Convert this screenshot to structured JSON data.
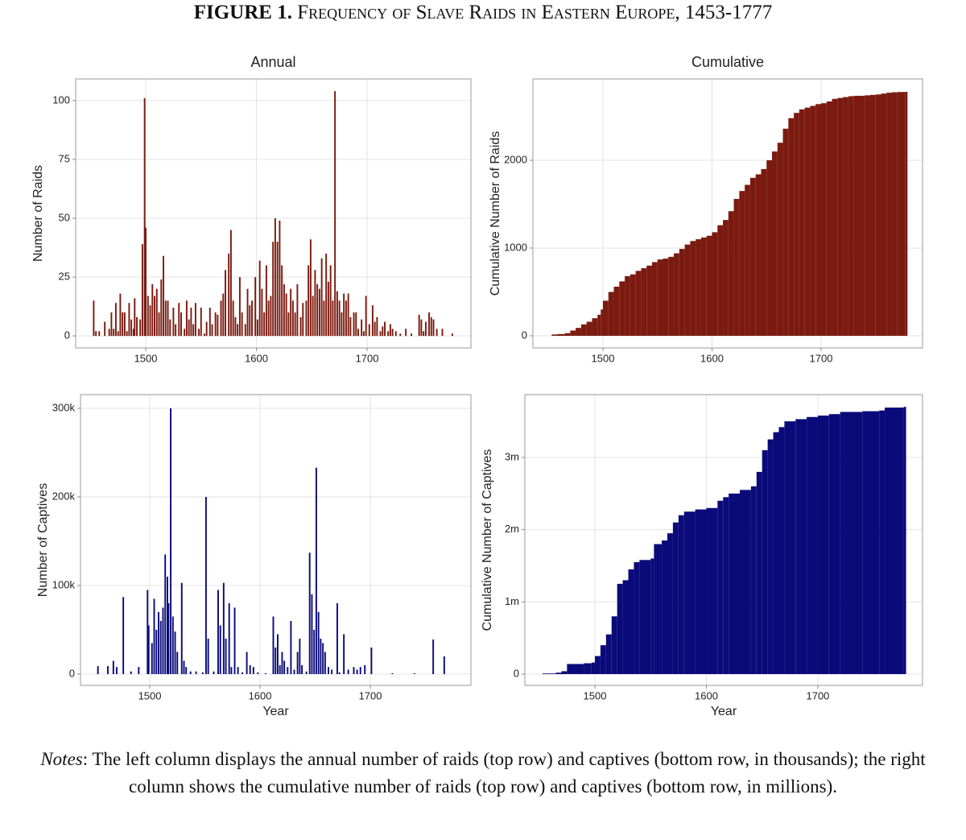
{
  "figure_label": "FIGURE 1.",
  "title": "Frequency of Slave Raids in Eastern Europe, 1453-1777",
  "notes_label": "Notes",
  "notes_text": ": The left column displays the annual number of raids (top row) and captives (bottom row, in thousands); the right column shows the cumulative number of raids (top row) and captives (bottom row, in millions).",
  "chart_data": [
    {
      "type": "bar",
      "title": "Annual",
      "ylabel": "Number of Raids",
      "color": "#7b1a10",
      "grid": true,
      "xlim": [
        1436.7,
        1793.8
      ],
      "xticks": [
        1500,
        1600,
        1700
      ],
      "ylim": [
        -5.1,
        109.2
      ],
      "yticks": [
        0,
        25,
        50,
        75,
        100
      ],
      "x": [
        1453,
        1455,
        1458,
        1463,
        1467,
        1469,
        1471,
        1473,
        1475,
        1477,
        1479,
        1481,
        1483,
        1485,
        1487,
        1489,
        1490,
        1492,
        1495,
        1497,
        1499,
        1500,
        1502,
        1504,
        1506,
        1508,
        1510,
        1512,
        1514,
        1516,
        1518,
        1520,
        1522,
        1525,
        1527,
        1530,
        1532,
        1535,
        1537,
        1539,
        1541,
        1543,
        1545,
        1548,
        1550,
        1553,
        1555,
        1558,
        1560,
        1563,
        1565,
        1568,
        1570,
        1572,
        1575,
        1577,
        1579,
        1581,
        1583,
        1585,
        1587,
        1590,
        1592,
        1594,
        1596,
        1599,
        1601,
        1603,
        1605,
        1607,
        1609,
        1611,
        1613,
        1615,
        1617,
        1619,
        1621,
        1623,
        1625,
        1627,
        1629,
        1631,
        1633,
        1635,
        1637,
        1640,
        1642,
        1645,
        1647,
        1649,
        1651,
        1653,
        1655,
        1657,
        1659,
        1661,
        1663,
        1665,
        1667,
        1669,
        1671,
        1673,
        1675,
        1677,
        1679,
        1681,
        1683,
        1685,
        1688,
        1690,
        1692,
        1695,
        1697,
        1699,
        1702,
        1705,
        1707,
        1709,
        1712,
        1714,
        1716,
        1719,
        1721,
        1723,
        1726,
        1730,
        1735,
        1740,
        1747,
        1749,
        1751,
        1753,
        1756,
        1758,
        1760,
        1763,
        1768,
        1777
      ],
      "values": [
        15,
        2,
        2,
        6,
        3,
        10,
        3,
        14,
        2,
        18,
        10,
        10,
        2,
        14,
        7,
        3,
        16,
        8,
        7,
        39,
        101,
        46,
        17,
        13,
        22,
        17,
        20,
        10,
        24,
        34,
        15,
        15,
        7,
        12,
        5,
        14,
        10,
        3,
        15,
        7,
        12,
        5,
        14,
        3,
        12,
        1,
        6,
        12,
        5,
        10,
        9,
        15,
        18,
        28,
        35,
        45,
        15,
        8,
        5,
        25,
        10,
        5,
        20,
        13,
        15,
        25,
        7,
        32,
        20,
        10,
        30,
        15,
        17,
        40,
        50,
        40,
        49,
        30,
        22,
        18,
        10,
        20,
        15,
        10,
        22,
        8,
        14,
        15,
        30,
        41,
        17,
        28,
        22,
        20,
        33,
        15,
        35,
        23,
        30,
        15,
        104,
        19,
        15,
        10,
        18,
        15,
        18,
        8,
        10,
        10,
        3,
        7,
        2,
        17,
        5,
        13,
        6,
        8,
        2,
        4,
        6,
        2,
        5,
        3,
        2,
        1,
        3,
        1,
        9,
        7,
        2,
        6,
        10,
        8,
        7,
        3,
        3,
        1
      ]
    },
    {
      "type": "step",
      "title": "Cumulative",
      "ylabel": "Cumulative Number of Raids",
      "color": "#7b1a10",
      "grid": true,
      "xlim": [
        1435.8,
        1793.0
      ],
      "xticks": [
        1500,
        1600,
        1700
      ],
      "ylim": [
        -138,
        2927
      ],
      "yticks": [
        0,
        1000,
        2000
      ],
      "x": [
        1453,
        1458,
        1465,
        1470,
        1475,
        1480,
        1485,
        1490,
        1495,
        1498,
        1500,
        1505,
        1510,
        1515,
        1520,
        1525,
        1530,
        1535,
        1540,
        1545,
        1550,
        1555,
        1560,
        1565,
        1570,
        1575,
        1580,
        1585,
        1590,
        1595,
        1600,
        1605,
        1610,
        1615,
        1620,
        1625,
        1630,
        1635,
        1640,
        1645,
        1650,
        1655,
        1660,
        1665,
        1670,
        1675,
        1680,
        1685,
        1690,
        1695,
        1700,
        1705,
        1710,
        1715,
        1720,
        1725,
        1730,
        1740,
        1745,
        1750,
        1755,
        1760,
        1765,
        1770,
        1777
      ],
      "values": [
        15,
        20,
        30,
        60,
        90,
        130,
        160,
        200,
        240,
        300,
        400,
        500,
        560,
        620,
        680,
        700,
        740,
        770,
        800,
        840,
        870,
        880,
        900,
        940,
        990,
        1040,
        1080,
        1100,
        1120,
        1140,
        1180,
        1260,
        1320,
        1420,
        1560,
        1650,
        1720,
        1800,
        1840,
        1900,
        2000,
        2100,
        2200,
        2360,
        2480,
        2540,
        2580,
        2600,
        2620,
        2640,
        2650,
        2670,
        2700,
        2710,
        2720,
        2730,
        2735,
        2740,
        2745,
        2750,
        2760,
        2770,
        2775,
        2778,
        2780
      ]
    },
    {
      "type": "bar",
      "ylabel": "Number of Captives",
      "xlabel": "Year",
      "color": "#0a0a7a",
      "grid": true,
      "xlim": [
        1437.2,
        1791.2
      ],
      "xticks": [
        1500,
        1600,
        1700
      ],
      "ylim": [
        -12727,
        315455
      ],
      "yticks": [
        0,
        {
          "value": 100000,
          "label": "100k"
        },
        {
          "value": 200000,
          "label": "200k"
        },
        {
          "value": 300000,
          "label": "300k"
        }
      ],
      "x": [
        1453,
        1462,
        1467,
        1470,
        1476,
        1483,
        1490,
        1498,
        1499,
        1502,
        1504,
        1506,
        1508,
        1510,
        1512,
        1514,
        1516,
        1517,
        1519,
        1521,
        1523,
        1525,
        1529,
        1531,
        1533,
        1537,
        1542,
        1548,
        1551,
        1553,
        1558,
        1562,
        1564,
        1567,
        1569,
        1572,
        1574,
        1577,
        1580,
        1584,
        1588,
        1591,
        1594,
        1598,
        1605,
        1612,
        1614,
        1616,
        1618,
        1620,
        1622,
        1625,
        1628,
        1631,
        1634,
        1636,
        1638,
        1642,
        1645,
        1647,
        1649,
        1651,
        1653,
        1655,
        1657,
        1659,
        1662,
        1665,
        1670,
        1672,
        1676,
        1680,
        1685,
        1688,
        1691,
        1695,
        1701,
        1720,
        1740,
        1757,
        1767
      ],
      "values": [
        9000,
        9000,
        15000,
        8000,
        87000,
        3000,
        8000,
        95000,
        55000,
        35000,
        85000,
        50000,
        70000,
        60000,
        75000,
        135000,
        110000,
        80000,
        300000,
        65000,
        48000,
        25000,
        103000,
        15000,
        8000,
        3000,
        3000,
        2000,
        200000,
        40000,
        3000,
        95000,
        55000,
        103000,
        40000,
        80000,
        8000,
        75000,
        8000,
        2000,
        25000,
        10000,
        8000,
        2000,
        1000,
        65000,
        30000,
        45000,
        10000,
        25000,
        15000,
        8000,
        60000,
        5000,
        25000,
        40000,
        10000,
        3000,
        137000,
        90000,
        50000,
        233000,
        70000,
        40000,
        35000,
        25000,
        8000,
        5000,
        80000,
        2000,
        45000,
        5000,
        8000,
        5000,
        8000,
        10000,
        30000,
        1000,
        1000,
        39000,
        20000
      ]
    },
    {
      "type": "step",
      "ylabel": "Cumulative Number of Captives",
      "xlabel": "Year",
      "color": "#0a0a7a",
      "grid": true,
      "xlim": [
        1437.2,
        1793.9
      ],
      "xticks": [
        1500,
        1600,
        1700
      ],
      "ylim": [
        -156000,
        3869565
      ],
      "yticks": [
        0,
        {
          "value": 1000000,
          "label": "1m"
        },
        {
          "value": 2000000,
          "label": "2m"
        },
        {
          "value": 3000000,
          "label": "3m"
        }
      ],
      "x": [
        1453,
        1465,
        1470,
        1475,
        1490,
        1497,
        1500,
        1505,
        1510,
        1515,
        1520,
        1525,
        1530,
        1535,
        1540,
        1550,
        1553,
        1560,
        1565,
        1570,
        1575,
        1580,
        1590,
        1600,
        1610,
        1615,
        1620,
        1630,
        1640,
        1645,
        1650,
        1655,
        1660,
        1665,
        1670,
        1680,
        1690,
        1700,
        1710,
        1720,
        1740,
        1755,
        1760,
        1777
      ],
      "values": [
        9000,
        20000,
        40000,
        140000,
        150000,
        160000,
        250000,
        400000,
        550000,
        800000,
        1250000,
        1300000,
        1450000,
        1550000,
        1580000,
        1600000,
        1800000,
        1850000,
        1950000,
        2100000,
        2200000,
        2250000,
        2280000,
        2300000,
        2400000,
        2450000,
        2500000,
        2550000,
        2600000,
        2800000,
        3100000,
        3250000,
        3350000,
        3420000,
        3500000,
        3530000,
        3560000,
        3580000,
        3600000,
        3630000,
        3640000,
        3650000,
        3690000,
        3700000
      ]
    }
  ]
}
